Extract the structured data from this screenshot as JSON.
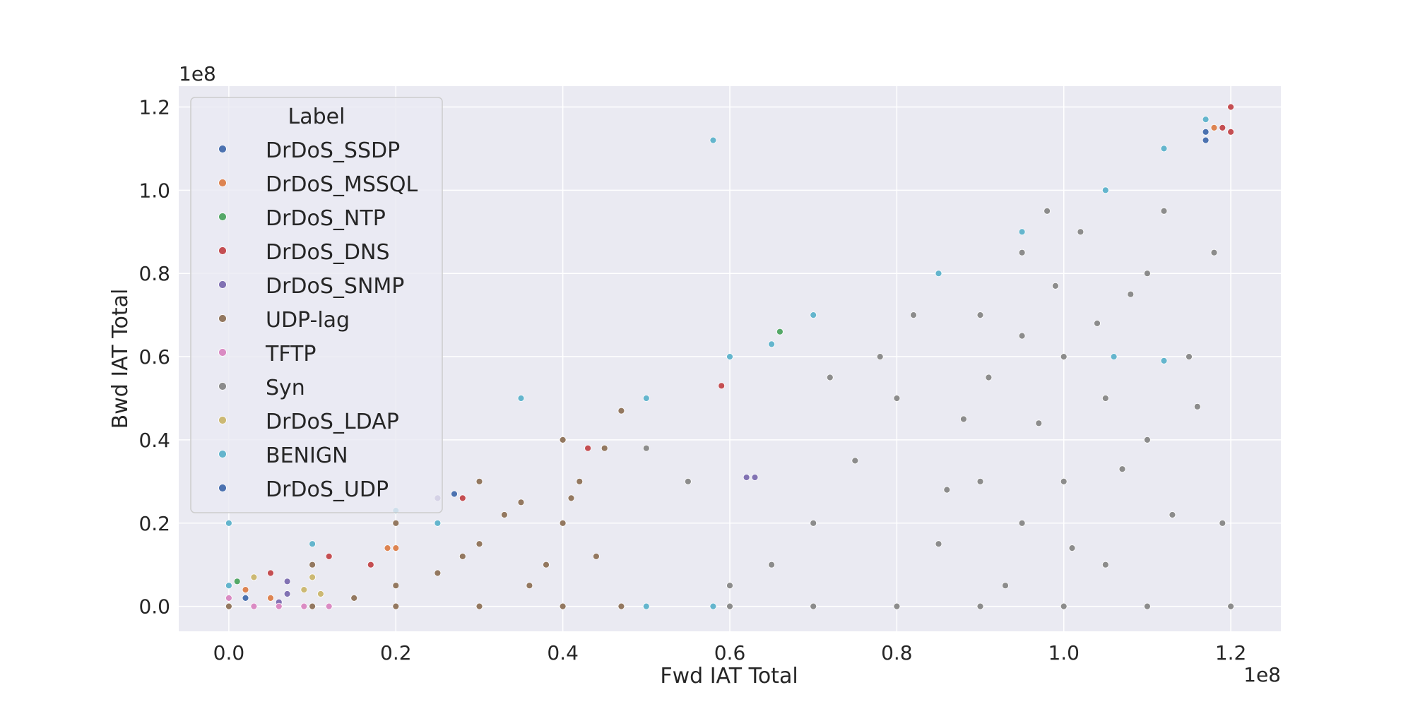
{
  "chart_data": {
    "type": "scatter",
    "title": "",
    "xlabel": "Fwd IAT Total",
    "ylabel": "Bwd IAT Total",
    "x_offset_text": "1e8",
    "y_offset_text": "1e8",
    "xlim": [
      -6000000,
      126000000
    ],
    "ylim": [
      -6000000,
      125000000
    ],
    "x_ticks": [
      0,
      20000000,
      40000000,
      60000000,
      80000000,
      100000000,
      120000000
    ],
    "x_tick_labels": [
      "0.0",
      "0.2",
      "0.4",
      "0.6",
      "0.8",
      "1.0",
      "1.2"
    ],
    "y_ticks": [
      0,
      20000000,
      40000000,
      60000000,
      80000000,
      100000000,
      120000000
    ],
    "y_tick_labels": [
      "0.0",
      "0.2",
      "0.4",
      "0.6",
      "0.8",
      "1.0",
      "1.2"
    ],
    "grid": true,
    "legend": {
      "title": "Label",
      "location": "upper-left",
      "entries": [
        {
          "name": "DrDoS_SSDP",
          "color": "#4c72b0"
        },
        {
          "name": "DrDoS_MSSQL",
          "color": "#dd8452"
        },
        {
          "name": "DrDoS_NTP",
          "color": "#55a868"
        },
        {
          "name": "DrDoS_DNS",
          "color": "#c44e52"
        },
        {
          "name": "DrDoS_SNMP",
          "color": "#8172b3"
        },
        {
          "name": "UDP-lag",
          "color": "#937860"
        },
        {
          "name": "TFTP",
          "color": "#da8bc3"
        },
        {
          "name": "Syn",
          "color": "#8c8c8c"
        },
        {
          "name": "DrDoS_LDAP",
          "color": "#ccb974"
        },
        {
          "name": "BENIGN",
          "color": "#64b5cd"
        },
        {
          "name": "DrDoS_UDP",
          "color": "#4c72b0"
        }
      ]
    },
    "series": [
      {
        "name": "Syn",
        "color": "#8c8c8c",
        "points": [
          [
            90000000,
            70000000
          ],
          [
            95000000,
            85000000
          ],
          [
            100000000,
            60000000
          ],
          [
            105000000,
            50000000
          ],
          [
            110000000,
            40000000
          ],
          [
            100000000,
            30000000
          ],
          [
            95000000,
            20000000
          ],
          [
            105000000,
            10000000
          ],
          [
            110000000,
            80000000
          ],
          [
            115000000,
            60000000
          ],
          [
            90000000,
            30000000
          ],
          [
            85000000,
            15000000
          ],
          [
            80000000,
            50000000
          ],
          [
            75000000,
            35000000
          ],
          [
            70000000,
            20000000
          ],
          [
            65000000,
            10000000
          ],
          [
            60000000,
            5000000
          ],
          [
            55000000,
            30000000
          ],
          [
            50000000,
            38000000
          ],
          [
            98000000,
            95000000
          ],
          [
            102000000,
            90000000
          ],
          [
            108000000,
            75000000
          ],
          [
            112000000,
            95000000
          ],
          [
            118000000,
            85000000
          ],
          [
            119000000,
            20000000
          ],
          [
            93000000,
            5000000
          ],
          [
            88000000,
            45000000
          ],
          [
            82000000,
            70000000
          ],
          [
            78000000,
            60000000
          ],
          [
            72000000,
            55000000
          ],
          [
            60000000,
            0
          ],
          [
            70000000,
            0
          ],
          [
            80000000,
            0
          ],
          [
            90000000,
            0
          ],
          [
            100000000,
            0
          ],
          [
            110000000,
            0
          ],
          [
            120000000,
            0
          ],
          [
            104000000,
            68000000
          ],
          [
            97000000,
            44000000
          ],
          [
            113000000,
            22000000
          ],
          [
            101000000,
            14000000
          ],
          [
            107000000,
            33000000
          ],
          [
            91000000,
            55000000
          ],
          [
            99000000,
            77000000
          ],
          [
            116000000,
            48000000
          ],
          [
            86000000,
            28000000
          ],
          [
            95000000,
            65000000
          ],
          [
            120000000,
            120000000
          ]
        ]
      },
      {
        "name": "UDP-lag",
        "color": "#937860",
        "points": [
          [
            0,
            0
          ],
          [
            10000000,
            10000000
          ],
          [
            20000000,
            20000000
          ],
          [
            30000000,
            30000000
          ],
          [
            40000000,
            40000000
          ],
          [
            47000000,
            47000000
          ],
          [
            35000000,
            25000000
          ],
          [
            40000000,
            20000000
          ],
          [
            38000000,
            10000000
          ],
          [
            30000000,
            15000000
          ],
          [
            42000000,
            30000000
          ],
          [
            25000000,
            8000000
          ],
          [
            45000000,
            38000000
          ],
          [
            36000000,
            5000000
          ],
          [
            44000000,
            12000000
          ],
          [
            33000000,
            22000000
          ],
          [
            20000000,
            5000000
          ],
          [
            15000000,
            2000000
          ],
          [
            28000000,
            12000000
          ],
          [
            41000000,
            26000000
          ],
          [
            10000000,
            0
          ],
          [
            20000000,
            0
          ],
          [
            30000000,
            0
          ],
          [
            40000000,
            0
          ],
          [
            47000000,
            0
          ]
        ]
      },
      {
        "name": "BENIGN",
        "color": "#64b5cd",
        "points": [
          [
            58000000,
            112000000
          ],
          [
            60000000,
            60000000
          ],
          [
            65000000,
            63000000
          ],
          [
            70000000,
            70000000
          ],
          [
            85000000,
            80000000
          ],
          [
            95000000,
            90000000
          ],
          [
            105000000,
            100000000
          ],
          [
            112000000,
            110000000
          ],
          [
            117000000,
            117000000
          ],
          [
            112000000,
            59000000
          ],
          [
            106000000,
            60000000
          ],
          [
            50000000,
            50000000
          ],
          [
            35000000,
            50000000
          ],
          [
            25000000,
            20000000
          ],
          [
            10000000,
            15000000
          ],
          [
            0,
            20000000
          ],
          [
            0,
            5000000
          ],
          [
            58000000,
            0
          ],
          [
            50000000,
            0
          ],
          [
            20000000,
            23000000
          ]
        ]
      },
      {
        "name": "DrDoS_DNS",
        "color": "#c44e52",
        "points": [
          [
            119000000,
            115000000
          ],
          [
            120000000,
            120000000
          ],
          [
            59000000,
            53000000
          ],
          [
            43000000,
            38000000
          ],
          [
            28000000,
            26000000
          ],
          [
            12000000,
            12000000
          ],
          [
            5000000,
            8000000
          ],
          [
            17000000,
            10000000
          ],
          [
            120000000,
            114000000
          ]
        ]
      },
      {
        "name": "DrDoS_MSSQL",
        "color": "#dd8452",
        "points": [
          [
            19000000,
            14000000
          ],
          [
            20000000,
            14000000
          ],
          [
            2000000,
            4000000
          ],
          [
            118000000,
            115000000
          ],
          [
            5000000,
            2000000
          ]
        ]
      },
      {
        "name": "DrDoS_NTP",
        "color": "#55a868",
        "points": [
          [
            66000000,
            66000000
          ],
          [
            1000000,
            6000000
          ]
        ]
      },
      {
        "name": "DrDoS_SNMP",
        "color": "#8172b3",
        "points": [
          [
            62000000,
            31000000
          ],
          [
            63000000,
            31000000
          ],
          [
            7000000,
            6000000
          ],
          [
            7000000,
            3000000
          ],
          [
            6000000,
            1000000
          ],
          [
            25000000,
            26000000
          ]
        ]
      },
      {
        "name": "DrDoS_LDAP",
        "color": "#ccb974",
        "points": [
          [
            9000000,
            4000000
          ],
          [
            10000000,
            7000000
          ],
          [
            11000000,
            3000000
          ],
          [
            3000000,
            7000000
          ]
        ]
      },
      {
        "name": "TFTP",
        "color": "#da8bc3",
        "points": [
          [
            3000000,
            0
          ],
          [
            6000000,
            0
          ],
          [
            9000000,
            0
          ],
          [
            12000000,
            0
          ],
          [
            0,
            2000000
          ]
        ]
      },
      {
        "name": "DrDoS_SSDP",
        "color": "#4c72b0",
        "points": [
          [
            117000000,
            114000000
          ],
          [
            27000000,
            27000000
          ]
        ]
      },
      {
        "name": "DrDoS_UDP",
        "color": "#4c72b0",
        "points": [
          [
            117000000,
            112000000
          ],
          [
            2000000,
            2000000
          ]
        ]
      }
    ]
  }
}
